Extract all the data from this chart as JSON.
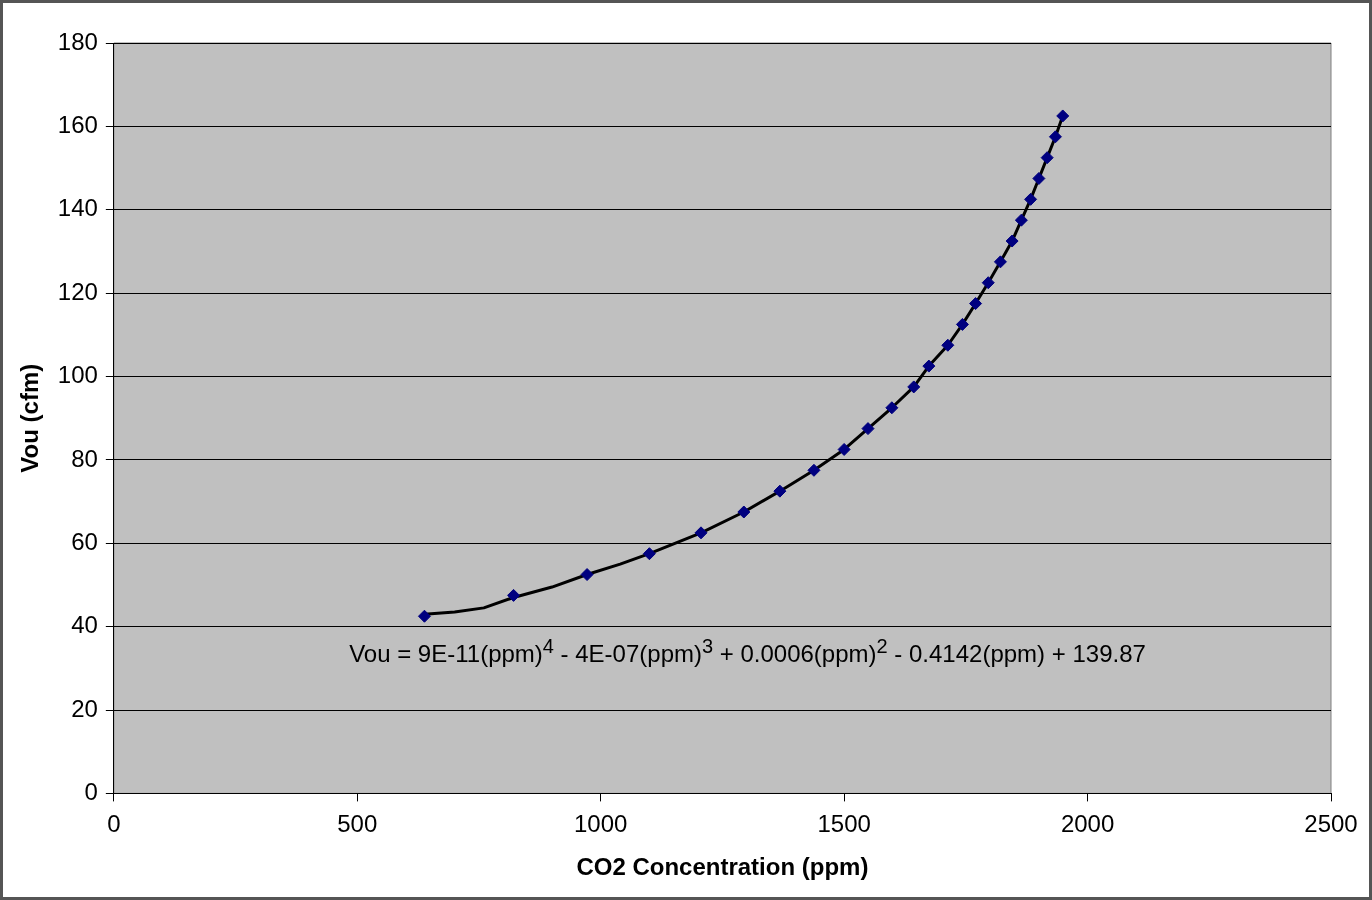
{
  "chart_data": {
    "type": "scatter",
    "xlabel": "CO2 Concentration (ppm)",
    "ylabel": "Vou (cfm)",
    "xlim": [
      0,
      2500
    ],
    "xticks": [
      0,
      500,
      1000,
      1500,
      2000,
      2500
    ],
    "ylim": [
      0,
      180
    ],
    "yticks": [
      0,
      20,
      40,
      60,
      80,
      100,
      120,
      140,
      160,
      180
    ],
    "grid": "y",
    "legend": false,
    "marker": "diamond",
    "series": [
      {
        "type": "line",
        "color": "#000000",
        "marker": "none",
        "line_style": "solid",
        "x": [
          638,
          700,
          760,
          821,
          900,
          972,
          1040,
          1100,
          1206,
          1294,
          1368,
          1438,
          1500,
          1549,
          1598,
          1643,
          1674,
          1713,
          1743,
          1770,
          1796,
          1821,
          1845,
          1864,
          1883,
          1900,
          1917,
          1934,
          1949
        ],
        "values": [
          43,
          43.5,
          44.5,
          47,
          49.5,
          52.5,
          55,
          57.5,
          62.5,
          67.5,
          72.5,
          77.5,
          82.5,
          87.5,
          92.5,
          97.5,
          102.5,
          107.5,
          112.5,
          117.5,
          122.5,
          127.5,
          132.5,
          137.5,
          142.5,
          147.5,
          152.5,
          157.5,
          162.5
        ]
      },
      {
        "type": "scatter",
        "color": "#000080",
        "x": [
          638,
          821,
          972,
          1100,
          1206,
          1294,
          1368,
          1438,
          1500,
          1549,
          1598,
          1643,
          1674,
          1713,
          1743,
          1770,
          1796,
          1821,
          1845,
          1864,
          1883,
          1900,
          1917,
          1934,
          1949
        ],
        "values": [
          42.5,
          47.5,
          52.5,
          57.5,
          62.5,
          67.5,
          72.5,
          77.5,
          82.5,
          87.5,
          92.5,
          97.5,
          102.5,
          107.5,
          112.5,
          117.5,
          122.5,
          127.5,
          132.5,
          137.5,
          142.5,
          147.5,
          152.5,
          157.5,
          162.5
        ]
      }
    ],
    "annotations": [
      "Vou = 9E-11(ppm)$^{4}$ - 4E-07(ppm)$^{3}$ + 0.0006(ppm)$^{2}$ - 0.4142(ppm) + 139.87"
    ]
  }
}
